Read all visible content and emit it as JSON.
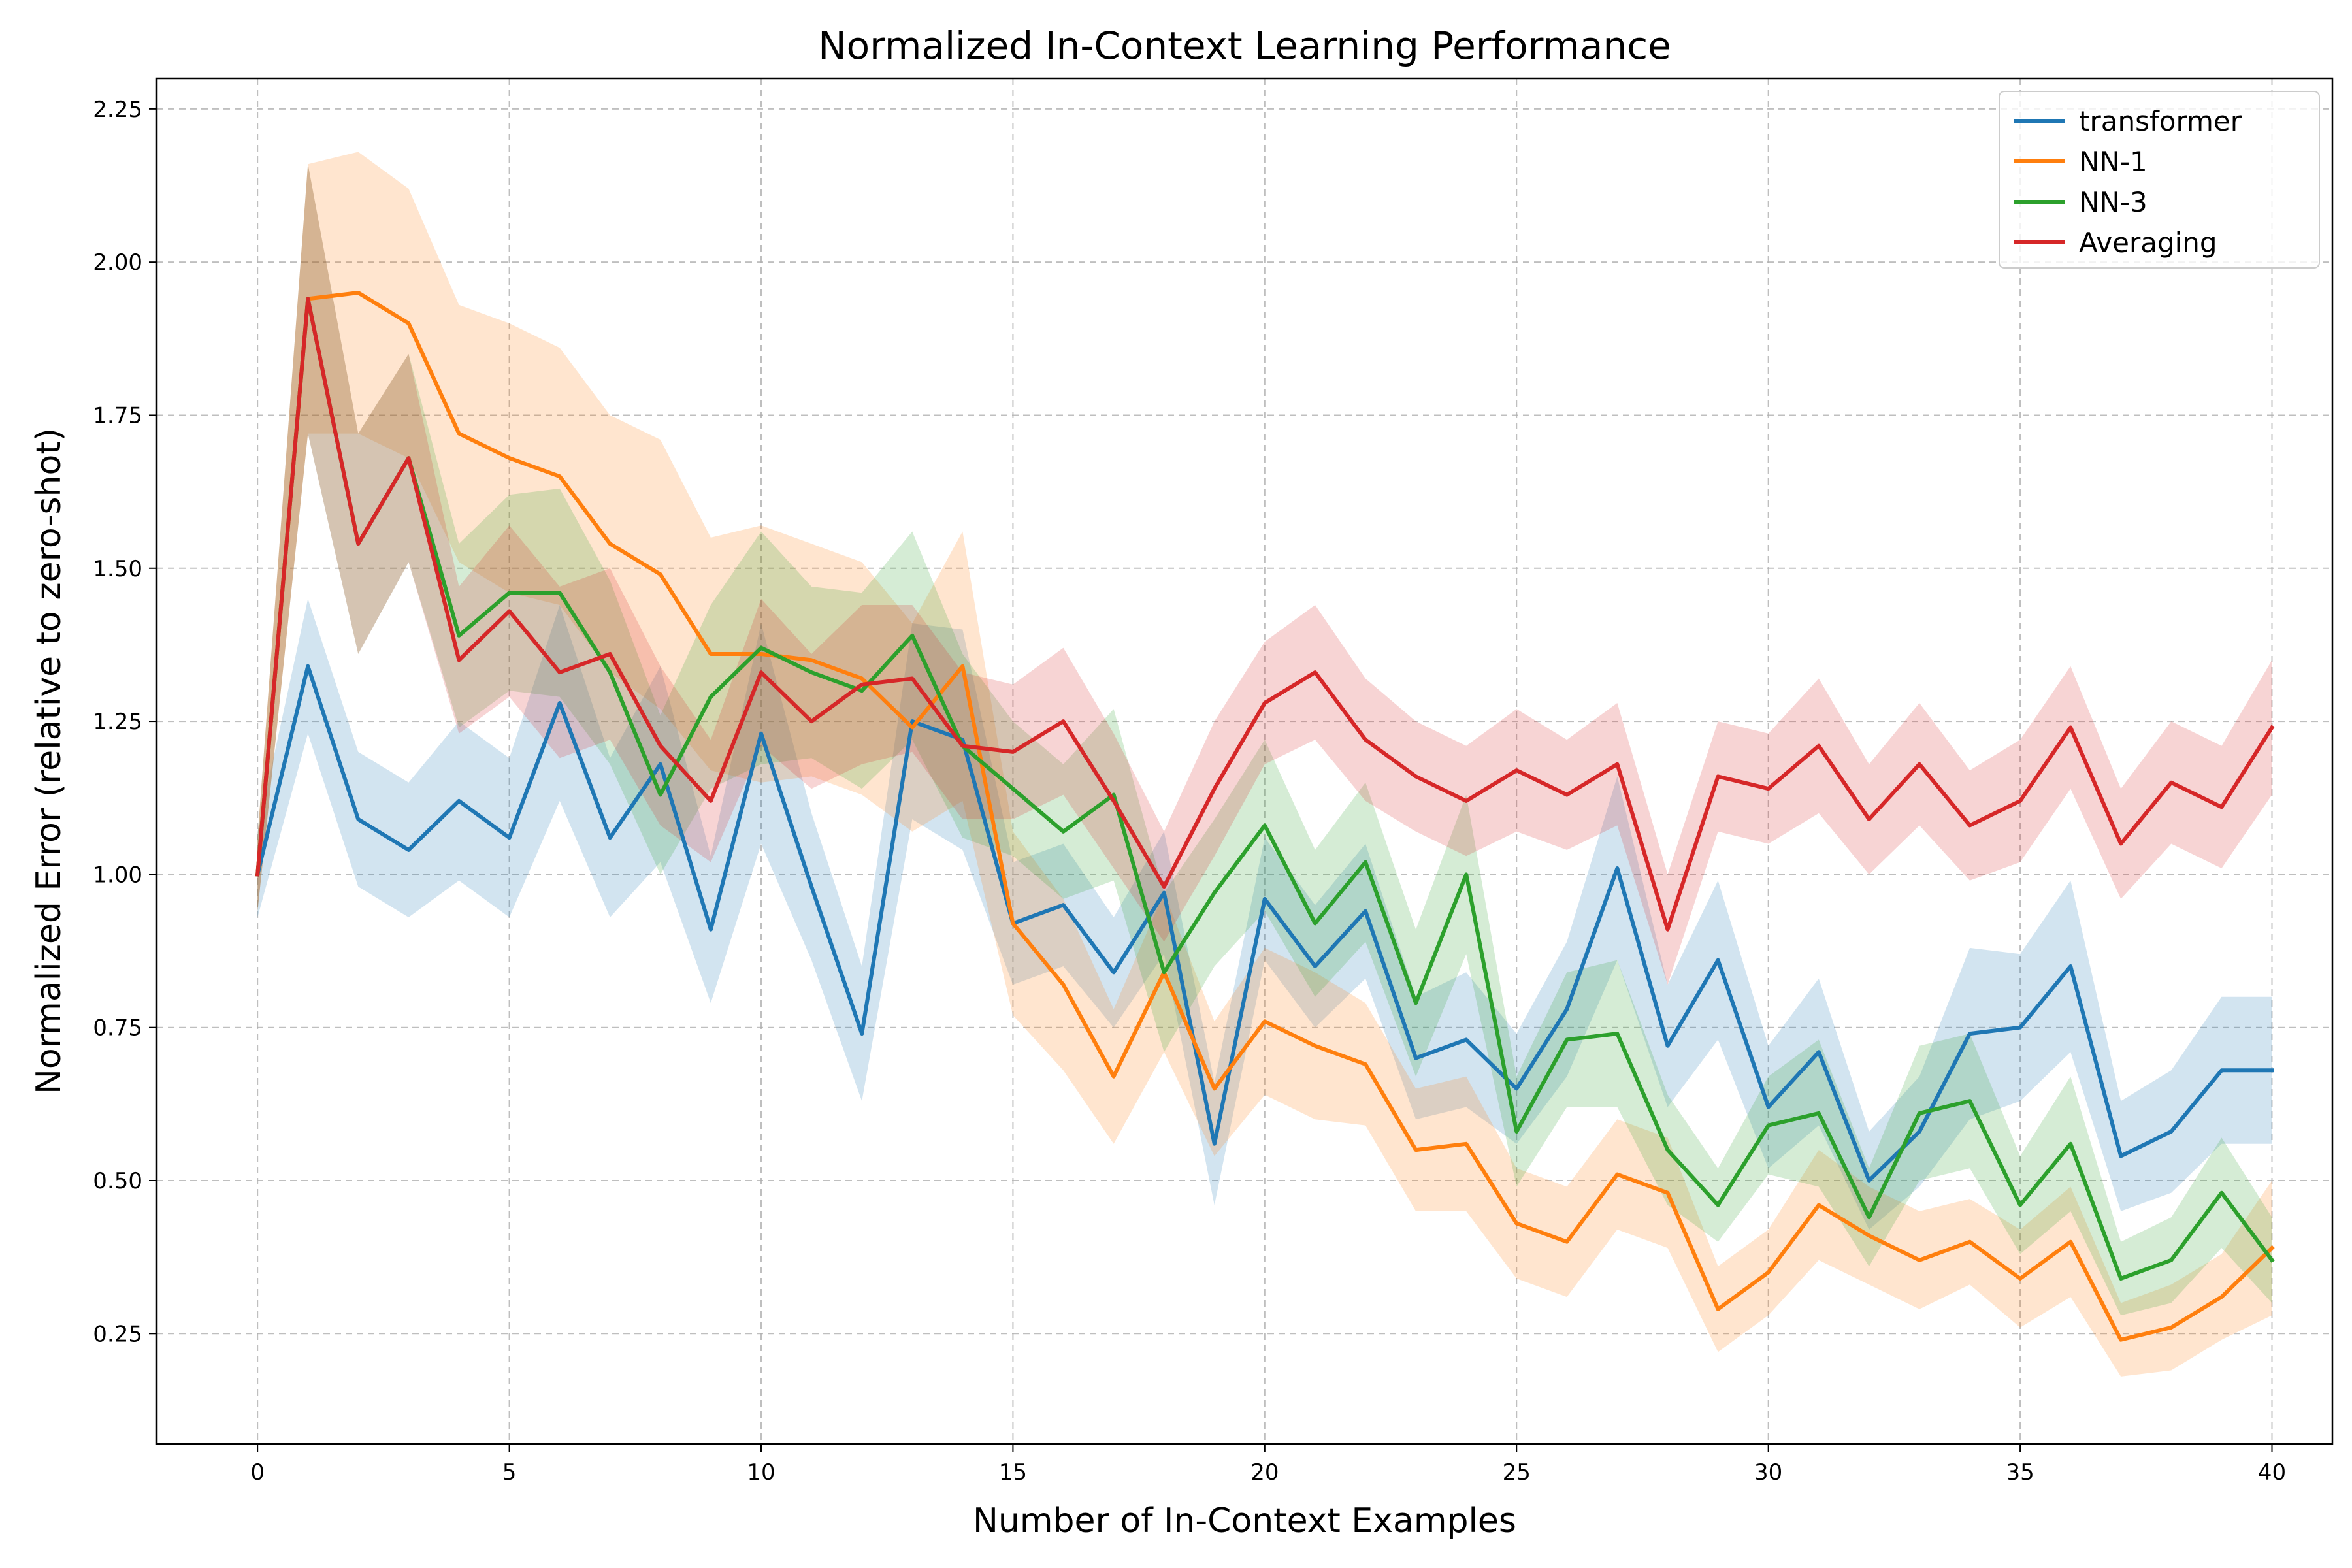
{
  "chart_data": {
    "type": "line",
    "title": "Normalized In-Context Learning Performance",
    "xlabel": "Number of In-Context Examples",
    "ylabel": "Normalized Error (relative to zero-shot)",
    "xlim": [
      -2,
      41.2
    ],
    "ylim": [
      0.07,
      2.3
    ],
    "xticks": [
      0,
      5,
      10,
      15,
      20,
      25,
      30,
      35,
      40
    ],
    "yticks": [
      0.25,
      0.5,
      0.75,
      1.0,
      1.25,
      1.5,
      1.75,
      2.0,
      2.25
    ],
    "ytick_labels": [
      "0.25",
      "0.50",
      "0.75",
      "1.00",
      "1.25",
      "1.50",
      "1.75",
      "2.00",
      "2.25"
    ],
    "grid": true,
    "legend_position": "top-right",
    "x": [
      0,
      1,
      2,
      3,
      4,
      5,
      6,
      7,
      8,
      9,
      10,
      11,
      12,
      13,
      14,
      15,
      16,
      17,
      18,
      19,
      20,
      21,
      22,
      23,
      24,
      25,
      26,
      27,
      28,
      29,
      30,
      31,
      32,
      33,
      34,
      35,
      36,
      37,
      38,
      39,
      40
    ],
    "series": [
      {
        "name": "transformer",
        "color": "#1f77b4",
        "values": [
          1.0,
          1.34,
          1.09,
          1.04,
          1.12,
          1.06,
          1.28,
          1.06,
          1.18,
          0.91,
          1.23,
          0.98,
          0.74,
          1.25,
          1.22,
          0.92,
          0.95,
          0.84,
          0.97,
          0.56,
          0.96,
          0.85,
          0.94,
          0.7,
          0.73,
          0.65,
          0.78,
          1.01,
          0.72,
          0.86,
          0.62,
          0.71,
          0.5,
          0.58,
          0.74,
          0.75,
          0.85,
          0.54,
          0.58,
          0.68,
          0.68
        ],
        "band": [
          0.07,
          0.11,
          0.11,
          0.11,
          0.13,
          0.13,
          0.16,
          0.13,
          0.16,
          0.12,
          0.18,
          0.12,
          0.11,
          0.16,
          0.18,
          0.1,
          0.1,
          0.09,
          0.1,
          0.1,
          0.1,
          0.1,
          0.11,
          0.1,
          0.11,
          0.09,
          0.11,
          0.15,
          0.1,
          0.13,
          0.1,
          0.12,
          0.08,
          0.09,
          0.14,
          0.12,
          0.14,
          0.09,
          0.1,
          0.12,
          0.12
        ]
      },
      {
        "name": "NN-1",
        "color": "#ff7f0e",
        "values": [
          1.0,
          1.94,
          1.95,
          1.9,
          1.72,
          1.68,
          1.65,
          1.54,
          1.49,
          1.36,
          1.36,
          1.35,
          1.32,
          1.24,
          1.34,
          0.92,
          0.82,
          0.67,
          0.84,
          0.65,
          0.76,
          0.72,
          0.69,
          0.55,
          0.56,
          0.43,
          0.4,
          0.51,
          0.48,
          0.29,
          0.35,
          0.46,
          0.41,
          0.37,
          0.4,
          0.34,
          0.4,
          0.24,
          0.26,
          0.31,
          0.39
        ],
        "band": [
          0.06,
          0.22,
          0.23,
          0.22,
          0.21,
          0.22,
          0.21,
          0.21,
          0.22,
          0.19,
          0.21,
          0.19,
          0.19,
          0.17,
          0.22,
          0.15,
          0.14,
          0.11,
          0.13,
          0.11,
          0.12,
          0.12,
          0.1,
          0.1,
          0.11,
          0.09,
          0.09,
          0.09,
          0.09,
          0.07,
          0.07,
          0.09,
          0.08,
          0.08,
          0.07,
          0.08,
          0.09,
          0.06,
          0.07,
          0.07,
          0.11
        ]
      },
      {
        "name": "NN-3",
        "color": "#2ca02c",
        "values": [
          1.0,
          1.94,
          1.54,
          1.68,
          1.39,
          1.46,
          1.46,
          1.33,
          1.13,
          1.29,
          1.37,
          1.33,
          1.3,
          1.39,
          1.21,
          1.14,
          1.07,
          1.13,
          0.84,
          0.97,
          1.08,
          0.92,
          1.02,
          0.79,
          1.0,
          0.58,
          0.73,
          0.74,
          0.55,
          0.46,
          0.59,
          0.61,
          0.44,
          0.61,
          0.63,
          0.46,
          0.56,
          0.34,
          0.37,
          0.48,
          0.37
        ],
        "band": [
          0.06,
          0.22,
          0.18,
          0.17,
          0.15,
          0.16,
          0.17,
          0.15,
          0.13,
          0.15,
          0.19,
          0.14,
          0.16,
          0.17,
          0.15,
          0.11,
          0.11,
          0.14,
          0.13,
          0.12,
          0.14,
          0.12,
          0.13,
          0.12,
          0.13,
          0.09,
          0.11,
          0.12,
          0.09,
          0.06,
          0.08,
          0.12,
          0.08,
          0.11,
          0.11,
          0.08,
          0.11,
          0.06,
          0.07,
          0.09,
          0.07
        ]
      },
      {
        "name": "Averaging",
        "color": "#d62728",
        "values": [
          1.0,
          1.94,
          1.54,
          1.68,
          1.35,
          1.43,
          1.33,
          1.36,
          1.21,
          1.12,
          1.33,
          1.25,
          1.31,
          1.32,
          1.21,
          1.2,
          1.25,
          1.12,
          0.98,
          1.14,
          1.28,
          1.33,
          1.22,
          1.16,
          1.12,
          1.17,
          1.13,
          1.18,
          0.91,
          1.16,
          1.14,
          1.21,
          1.09,
          1.18,
          1.08,
          1.12,
          1.24,
          1.05,
          1.15,
          1.11,
          1.24
        ],
        "band": [
          0.06,
          0.22,
          0.18,
          0.17,
          0.12,
          0.14,
          0.14,
          0.14,
          0.13,
          0.1,
          0.12,
          0.11,
          0.13,
          0.12,
          0.12,
          0.11,
          0.12,
          0.11,
          0.09,
          0.11,
          0.1,
          0.11,
          0.1,
          0.09,
          0.09,
          0.1,
          0.09,
          0.1,
          0.09,
          0.09,
          0.09,
          0.11,
          0.09,
          0.1,
          0.09,
          0.1,
          0.1,
          0.09,
          0.1,
          0.1,
          0.11
        ]
      }
    ]
  }
}
